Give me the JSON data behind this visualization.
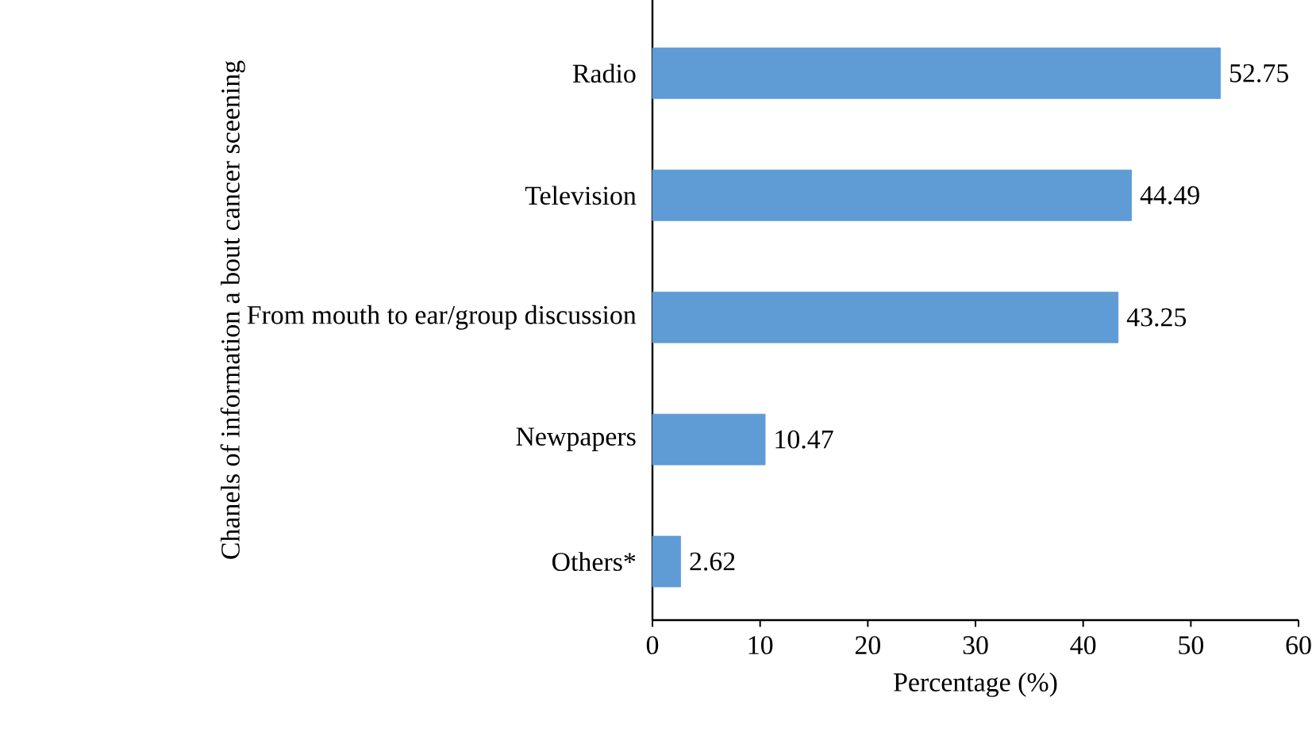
{
  "chart_data": {
    "type": "bar",
    "orientation": "horizontal",
    "ylabel": "Chanels of information a bout cancer sceening",
    "xlabel": "Percentage (%)",
    "categories": [
      "Radio",
      "Television",
      "From mouth to ear/group discussion",
      "Newpapers",
      "Others*"
    ],
    "values": [
      52.75,
      44.49,
      43.25,
      10.47,
      2.62
    ],
    "color": "#5f9bd5",
    "xlim": [
      0,
      60
    ],
    "xticks": [
      0,
      10,
      20,
      30,
      40,
      50,
      60
    ],
    "data_labels": true
  }
}
